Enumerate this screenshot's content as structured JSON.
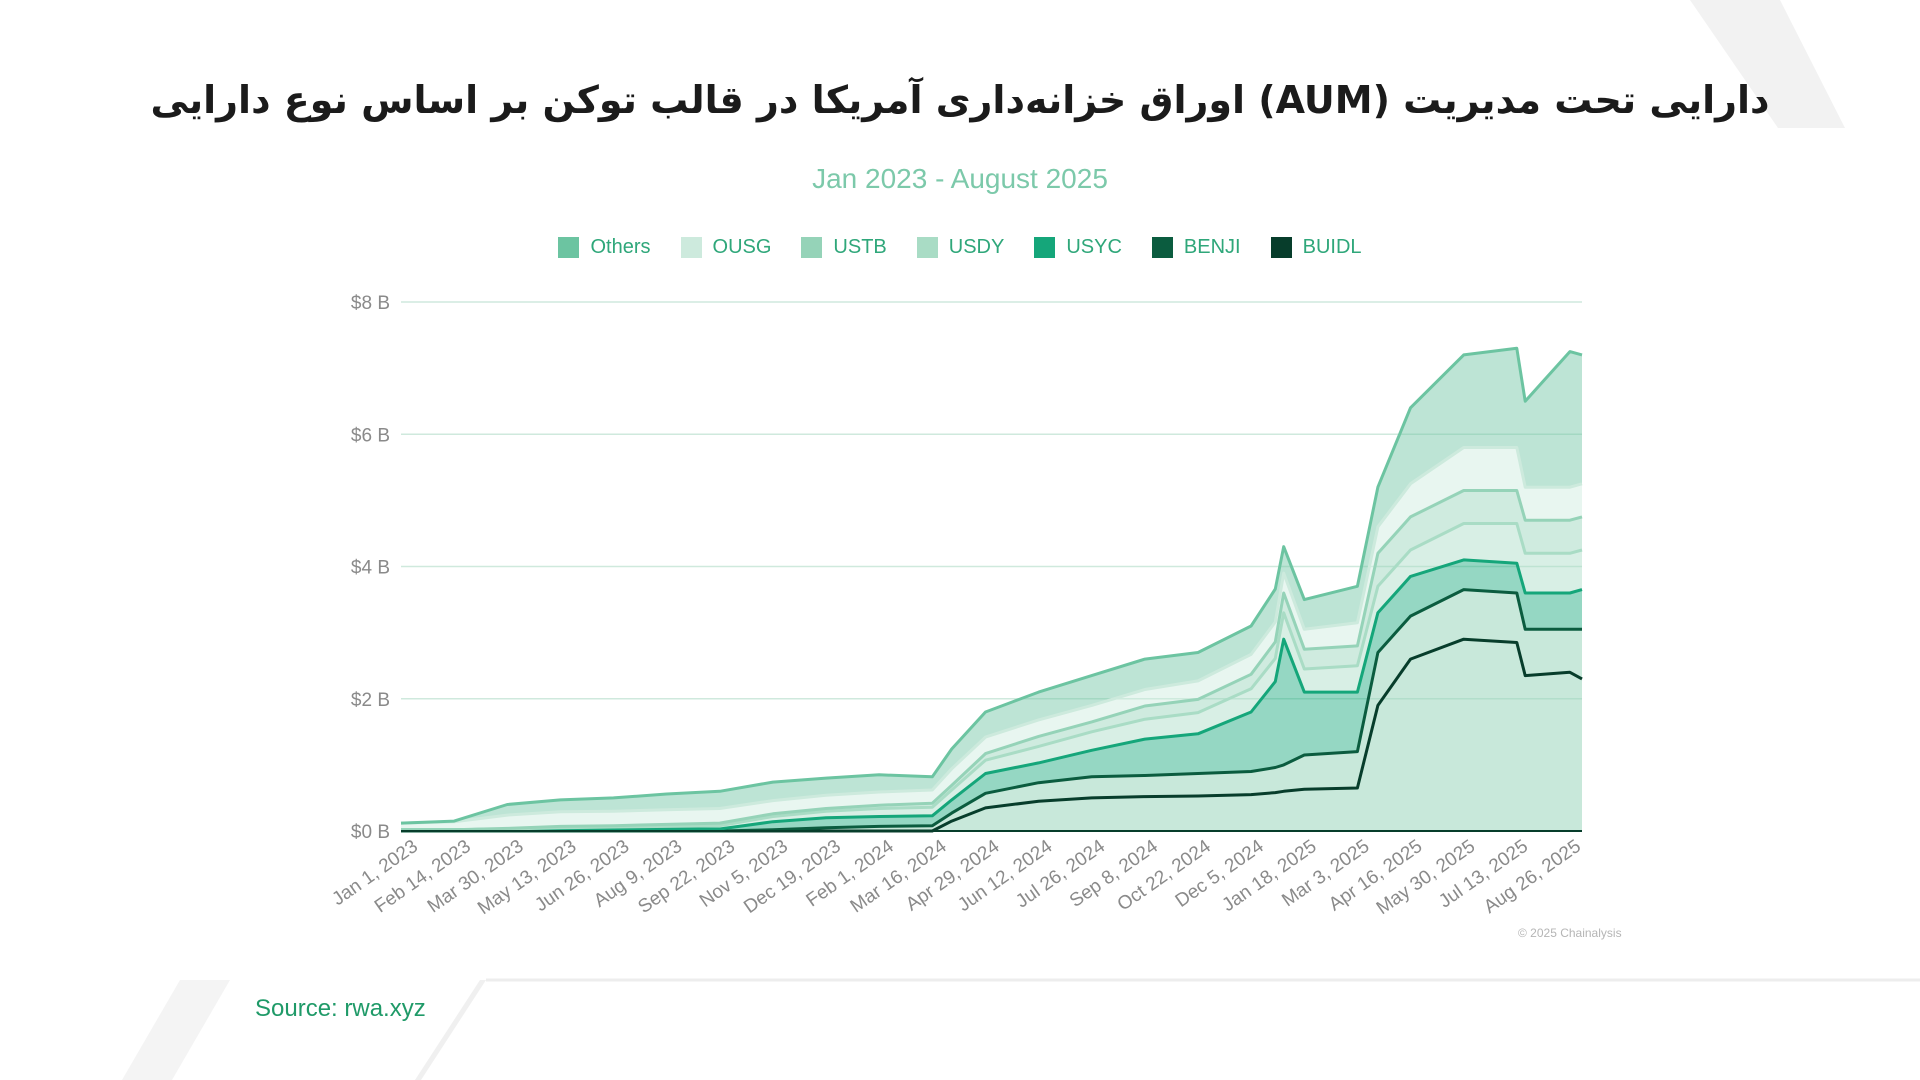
{
  "title": "دارایی تحت مدیریت (AUM) اوراق خزانه‌داری آمریکا در قالب توکن بر اساس نوع دارایی",
  "subtitle": "Jan 2023 - August 2025",
  "source": "Source: rwa.xyz",
  "copyright": "© 2025 Chainalysis",
  "colors": {
    "Others": "#6cc4a1",
    "OUSG": "#cdeadd",
    "USTB": "#95d3b8",
    "USDY": "#a9dcc5",
    "USYC": "#15a67a",
    "BENJI": "#0b5c3f",
    "BUIDL": "#073d2b",
    "grid": "#cfe9dd",
    "axis_text": "#8a8a8a"
  },
  "chart_data": {
    "type": "area",
    "stacked": true,
    "title": "دارایی تحت مدیریت (AUM) اوراق خزانه‌داری آمریکا در قالب توکن بر اساس نوع دارایی",
    "subtitle": "Jan 2023 - August 2025",
    "legend_position": "top",
    "grid": true,
    "y_ticks": [
      "$0 B",
      "$2 B",
      "$4 B",
      "$6 B",
      "$8 B"
    ],
    "ylim": [
      0,
      8
    ],
    "unit": "B USD",
    "x_ticks": [
      "Jan 1, 2023",
      "Feb 14, 2023",
      "Mar 30, 2023",
      "May 13, 2023",
      "Jun 26, 2023",
      "Aug 9, 2023",
      "Sep 22, 2023",
      "Nov 5, 2023",
      "Dec 19, 2023",
      "Feb 1, 2024",
      "Mar 16, 2024",
      "Apr 29, 2024",
      "Jun 12, 2024",
      "Jul 26, 2024",
      "Sep 8, 2024",
      "Oct 22, 2024",
      "Dec 5, 2024",
      "Jan 18, 2025",
      "Mar 3, 2025",
      "Apr 16, 2025",
      "May 30, 2025",
      "Jul 13, 2025",
      "Aug 26, 2025"
    ],
    "x": [
      "2023-01-01",
      "2023-02-14",
      "2023-03-30",
      "2023-05-13",
      "2023-06-26",
      "2023-08-09",
      "2023-09-22",
      "2023-11-05",
      "2023-12-19",
      "2024-02-01",
      "2024-03-16",
      "2024-04-01",
      "2024-04-29",
      "2024-06-12",
      "2024-07-26",
      "2024-09-08",
      "2024-10-22",
      "2024-12-05",
      "2024-12-25",
      "2025-01-01",
      "2025-01-18",
      "2025-03-03",
      "2025-03-20",
      "2025-04-16",
      "2025-05-30",
      "2025-07-13",
      "2025-07-20",
      "2025-08-26",
      "2025-09-05"
    ],
    "series": [
      {
        "name": "BUIDL",
        "values": [
          0,
          0,
          0,
          0,
          0,
          0,
          0,
          0,
          0,
          0,
          0,
          0.15,
          0.35,
          0.45,
          0.5,
          0.52,
          0.53,
          0.55,
          0.58,
          0.6,
          0.63,
          0.65,
          1.9,
          2.6,
          2.9,
          2.85,
          2.35,
          2.4,
          2.3
        ]
      },
      {
        "name": "BENJI",
        "values": [
          0,
          0,
          0,
          0,
          0,
          0,
          0,
          0.02,
          0.05,
          0.07,
          0.08,
          0.12,
          0.22,
          0.28,
          0.32,
          0.32,
          0.34,
          0.35,
          0.38,
          0.4,
          0.52,
          0.55,
          0.8,
          0.65,
          0.75,
          0.75,
          0.7,
          0.65,
          0.75
        ]
      },
      {
        "name": "USYC",
        "values": [
          0.02,
          0.02,
          0.03,
          0.03,
          0.03,
          0.03,
          0.03,
          0.12,
          0.15,
          0.15,
          0.15,
          0.2,
          0.3,
          0.3,
          0.4,
          0.55,
          0.6,
          0.9,
          1.3,
          1.9,
          0.95,
          0.9,
          0.6,
          0.6,
          0.45,
          0.45,
          0.55,
          0.55,
          0.6
        ]
      },
      {
        "name": "USDY",
        "values": [
          0,
          0,
          0,
          0.02,
          0.03,
          0.04,
          0.05,
          0.08,
          0.1,
          0.12,
          0.13,
          0.15,
          0.2,
          0.25,
          0.28,
          0.3,
          0.32,
          0.35,
          0.35,
          0.4,
          0.35,
          0.4,
          0.4,
          0.4,
          0.55,
          0.6,
          0.6,
          0.6,
          0.6
        ]
      },
      {
        "name": "USTB",
        "values": [
          0,
          0,
          0.01,
          0.02,
          0.02,
          0.03,
          0.04,
          0.04,
          0.04,
          0.05,
          0.06,
          0.07,
          0.1,
          0.15,
          0.15,
          0.2,
          0.2,
          0.22,
          0.25,
          0.3,
          0.3,
          0.3,
          0.5,
          0.5,
          0.5,
          0.5,
          0.5,
          0.5,
          0.5
        ]
      },
      {
        "name": "OUSG",
        "values": [
          0.1,
          0.12,
          0.2,
          0.22,
          0.22,
          0.22,
          0.22,
          0.2,
          0.2,
          0.2,
          0.2,
          0.25,
          0.25,
          0.25,
          0.25,
          0.25,
          0.28,
          0.3,
          0.3,
          0.3,
          0.3,
          0.35,
          0.4,
          0.5,
          0.65,
          0.65,
          0.5,
          0.5,
          0.5
        ]
      },
      {
        "name": "Others",
        "values": [
          0,
          0.01,
          0.16,
          0.18,
          0.2,
          0.24,
          0.26,
          0.28,
          0.26,
          0.26,
          0.2,
          0.3,
          0.38,
          0.42,
          0.45,
          0.46,
          0.43,
          0.43,
          0.5,
          0.4,
          0.45,
          0.55,
          0.6,
          1.15,
          1.4,
          1.5,
          1.3,
          2.05,
          1.95
        ]
      }
    ]
  }
}
